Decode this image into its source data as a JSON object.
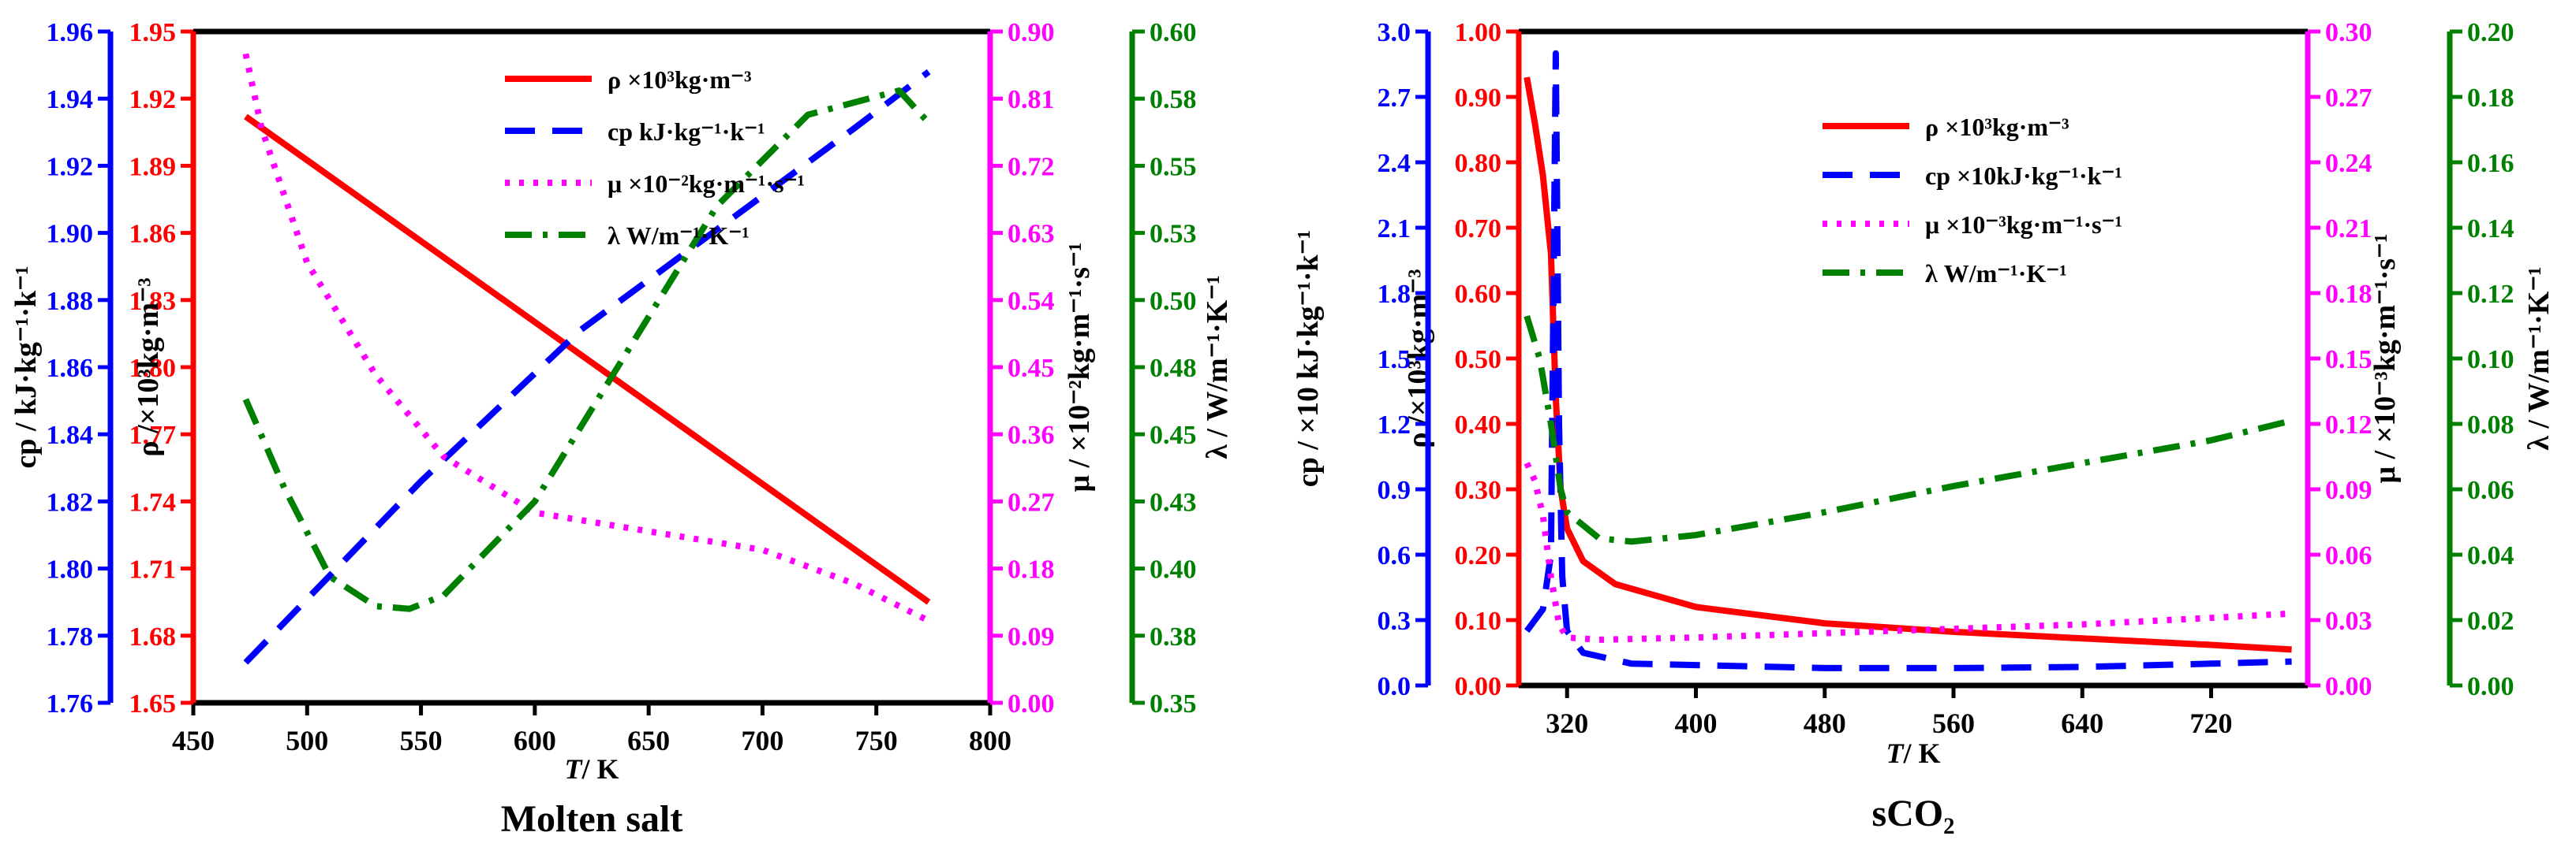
{
  "chart_data": [
    {
      "type": "line",
      "title": "Molten salt",
      "xlabel_italic": "T",
      "xlabel_rest": "/ K",
      "xlim": [
        450,
        800
      ],
      "xticks": [
        "450",
        "500",
        "550",
        "600",
        "650",
        "700",
        "750",
        "800"
      ],
      "colors": {
        "rho": "#ff0000",
        "cp": "#0000ff",
        "mu": "#ff00ff",
        "lambda": "#008000"
      },
      "axes": {
        "rho": {
          "min": 1.65,
          "max": 1.95,
          "ticks": [
            "1.65",
            "1.68",
            "1.71",
            "1.74",
            "1.77",
            "1.80",
            "1.83",
            "1.86",
            "1.89",
            "1.92",
            "1.95"
          ],
          "label": "ρ /×10³kg·m⁻³"
        },
        "cp": {
          "min": 1.76,
          "max": 1.96,
          "ticks": [
            "1.76",
            "1.78",
            "1.80",
            "1.82",
            "1.84",
            "1.86",
            "1.88",
            "1.90",
            "1.92",
            "1.94",
            "1.96"
          ],
          "label": "cp / kJ·kg⁻¹·k⁻¹"
        },
        "mu": {
          "min": 0.0,
          "max": 0.9,
          "ticks": [
            "0.00",
            "0.09",
            "0.18",
            "0.27",
            "0.36",
            "0.45",
            "0.54",
            "0.63",
            "0.72",
            "0.81",
            "0.90"
          ],
          "label": "μ / ×10⁻²kg·m⁻¹·s⁻¹"
        },
        "lambda": {
          "min": 0.35,
          "max": 0.6,
          "ticks": [
            "0.35",
            "0.38",
            "0.40",
            "0.43",
            "0.45",
            "0.48",
            "0.50",
            "0.53",
            "0.55",
            "0.58",
            "0.60"
          ],
          "label": "λ / W/m⁻¹·K⁻¹"
        }
      },
      "legend": {
        "rho": "ρ ×10³kg·m⁻³",
        "cp": "cp kJ·kg⁻¹·k⁻¹",
        "mu": "μ ×10⁻²kg·m⁻¹·s⁻¹",
        "lambda": "λ W/m⁻¹·K⁻¹"
      },
      "series": [
        {
          "key": "rho",
          "name": "ρ",
          "x": [
            473,
            773
          ],
          "y": [
            1.912,
            1.695
          ]
        },
        {
          "key": "cp",
          "name": "cp",
          "x": [
            473,
            550,
            620,
            680,
            740,
            773
          ],
          "y": [
            1.772,
            1.826,
            1.871,
            1.901,
            1.931,
            1.948
          ]
        },
        {
          "key": "mu",
          "name": "μ",
          "x": [
            473,
            480,
            500,
            530,
            560,
            600,
            650,
            700,
            740,
            773
          ],
          "y": [
            0.87,
            0.77,
            0.59,
            0.44,
            0.33,
            0.255,
            0.23,
            0.205,
            0.16,
            0.11
          ]
        },
        {
          "key": "lambda",
          "name": "λ",
          "x": [
            473,
            490,
            510,
            530,
            545,
            560,
            600,
            640,
            680,
            720,
            760,
            773
          ],
          "y": [
            0.463,
            0.43,
            0.397,
            0.386,
            0.385,
            0.39,
            0.425,
            0.48,
            0.535,
            0.569,
            0.578,
            0.566
          ]
        }
      ]
    },
    {
      "type": "line",
      "title": "sCO₂",
      "xlabel_italic": "T",
      "xlabel_rest": "/ K",
      "xlim": [
        290,
        780
      ],
      "xticks": [
        "320",
        "400",
        "480",
        "560",
        "640",
        "720"
      ],
      "xtick_values": [
        320,
        400,
        480,
        560,
        640,
        720
      ],
      "colors": {
        "rho": "#ff0000",
        "cp": "#0000ff",
        "mu": "#ff00ff",
        "lambda": "#008000"
      },
      "axes": {
        "rho": {
          "min": 0.0,
          "max": 1.0,
          "ticks": [
            "0.00",
            "0.10",
            "0.20",
            "0.30",
            "0.40",
            "0.50",
            "0.60",
            "0.70",
            "0.80",
            "0.90",
            "1.00"
          ],
          "label": "ρ /×10³kg·m⁻³"
        },
        "cp": {
          "min": 0.0,
          "max": 3.0,
          "ticks": [
            "0.0",
            "0.3",
            "0.6",
            "0.9",
            "1.2",
            "1.5",
            "1.8",
            "2.1",
            "2.4",
            "2.7",
            "3.0"
          ],
          "label": "cp / ×10 kJ·kg⁻¹·k⁻¹"
        },
        "mu": {
          "min": 0.0,
          "max": 0.3,
          "ticks": [
            "0.00",
            "0.03",
            "0.06",
            "0.09",
            "0.12",
            "0.15",
            "0.18",
            "0.21",
            "0.24",
            "0.27",
            "0.30"
          ],
          "label": "μ / ×10⁻³kg·m⁻¹·s⁻¹"
        },
        "lambda": {
          "min": 0.0,
          "max": 0.2,
          "ticks": [
            "0.00",
            "0.02",
            "0.04",
            "0.06",
            "0.08",
            "0.10",
            "0.12",
            "0.14",
            "0.16",
            "0.18",
            "0.20"
          ],
          "label": "λ / W/m⁻¹·K⁻¹"
        }
      },
      "legend": {
        "rho": "ρ ×10³kg·m⁻³",
        "cp": "cp ×10kJ·kg⁻¹·k⁻¹",
        "mu": "μ ×10⁻³kg·m⁻¹·s⁻¹",
        "lambda": "λ W/m⁻¹·K⁻¹"
      },
      "series": [
        {
          "key": "rho",
          "name": "ρ",
          "x": [
            295,
            300,
            305,
            310,
            313,
            316,
            320,
            330,
            350,
            400,
            480,
            560,
            640,
            720,
            770
          ],
          "y": [
            0.93,
            0.86,
            0.78,
            0.66,
            0.44,
            0.3,
            0.24,
            0.19,
            0.155,
            0.12,
            0.095,
            0.082,
            0.072,
            0.062,
            0.055
          ]
        },
        {
          "key": "cp",
          "name": "cp",
          "x": [
            295,
            305,
            310,
            313,
            315,
            317,
            320,
            330,
            360,
            480,
            560,
            640,
            720,
            770
          ],
          "y": [
            0.25,
            0.35,
            0.6,
            2.9,
            1.2,
            0.5,
            0.25,
            0.15,
            0.1,
            0.08,
            0.08,
            0.085,
            0.1,
            0.11
          ]
        },
        {
          "key": "mu",
          "name": "μ",
          "x": [
            295,
            300,
            305,
            310,
            315,
            320,
            340,
            400,
            480,
            560,
            640,
            720,
            770
          ],
          "y": [
            0.102,
            0.094,
            0.078,
            0.05,
            0.028,
            0.022,
            0.021,
            0.022,
            0.024,
            0.026,
            0.028,
            0.031,
            0.033
          ]
        },
        {
          "key": "lambda",
          "name": "λ",
          "x": [
            295,
            303,
            310,
            316,
            320,
            340,
            360,
            400,
            480,
            560,
            640,
            720,
            770
          ],
          "y": [
            0.113,
            0.1,
            0.08,
            0.06,
            0.053,
            0.045,
            0.044,
            0.046,
            0.053,
            0.061,
            0.068,
            0.075,
            0.081
          ]
        }
      ]
    }
  ]
}
